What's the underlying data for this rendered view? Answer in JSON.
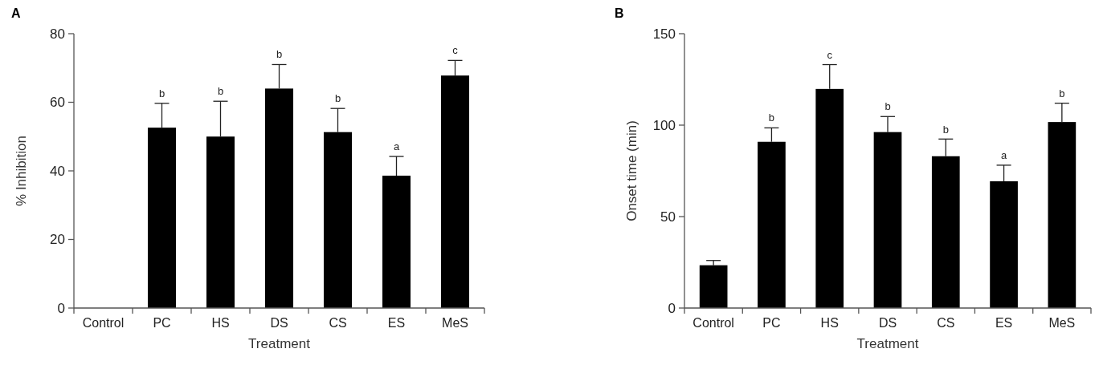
{
  "chart_data": [
    {
      "type": "bar",
      "title": "A",
      "xlabel": "Treatment",
      "ylabel": "% Inhibition",
      "categories": [
        "Control",
        "PC",
        "HS",
        "DS",
        "CS",
        "ES",
        "MeS"
      ],
      "values": [
        null,
        52.6,
        50.0,
        64.0,
        51.3,
        38.6,
        67.8
      ],
      "errors": [
        null,
        7.1,
        10.3,
        7.0,
        6.9,
        5.6,
        4.4
      ],
      "color": "#000000",
      "ylim": [
        0,
        80
      ],
      "yticks": [
        0,
        20,
        40,
        60,
        80
      ],
      "grid": false,
      "annotations": [
        {
          "text": "b",
          "x": "PC",
          "y": 59.7
        },
        {
          "text": "b",
          "x": "HS",
          "y": 60.3
        },
        {
          "text": "b",
          "x": "DS",
          "y": 71.0
        },
        {
          "text": "b",
          "x": "CS",
          "y": 58.2
        },
        {
          "text": "a",
          "x": "ES",
          "y": 44.2
        },
        {
          "text": "c",
          "x": "MeS",
          "y": 72.2
        }
      ]
    },
    {
      "type": "bar",
      "title": "B",
      "xlabel": "Treatment",
      "ylabel": "Onset time (min)",
      "categories": [
        "Control",
        "PC",
        "HS",
        "DS",
        "CS",
        "ES",
        "MeS"
      ],
      "values": [
        23.4,
        90.9,
        119.8,
        96.2,
        83.0,
        69.3,
        101.7
      ],
      "errors": [
        2.6,
        7.6,
        13.3,
        8.5,
        9.4,
        8.8,
        10.3
      ],
      "color": "#000000",
      "ylim": [
        0,
        150
      ],
      "yticks": [
        0,
        50,
        100,
        150
      ],
      "grid": false,
      "annotations": [
        {
          "text": "b",
          "x": "PC",
          "y": 98.5
        },
        {
          "text": "c",
          "x": "HS",
          "y": 133.0
        },
        {
          "text": "b",
          "x": "DS",
          "y": 104.7
        },
        {
          "text": "b",
          "x": "CS",
          "y": 92.3
        },
        {
          "text": "a",
          "x": "ES",
          "y": 78.2
        },
        {
          "text": "b",
          "x": "MeS",
          "y": 112.0
        }
      ]
    }
  ]
}
